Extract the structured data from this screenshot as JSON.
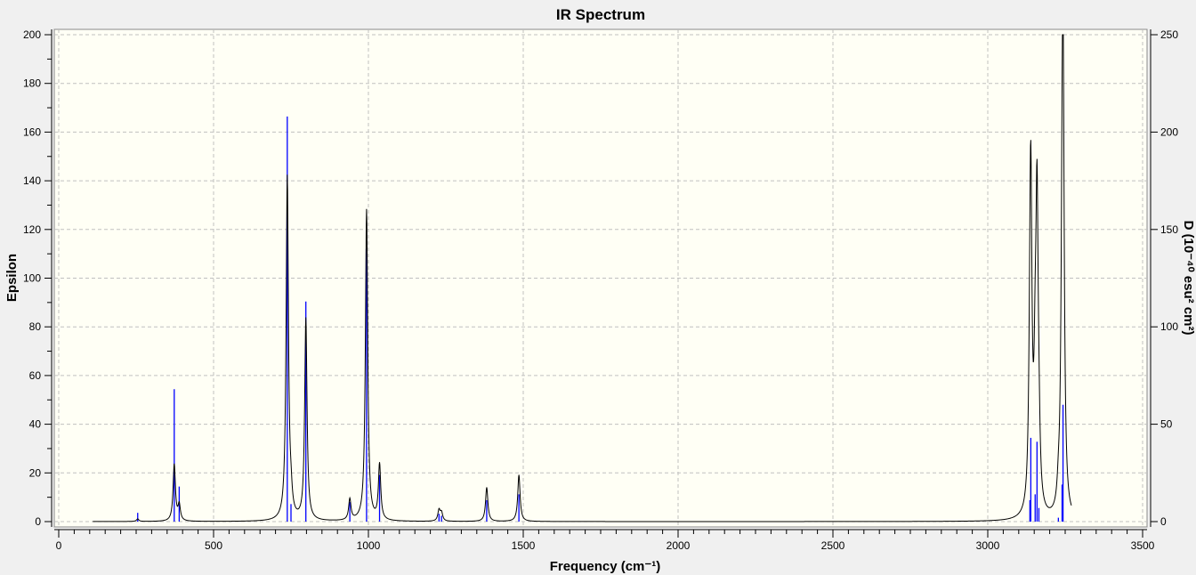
{
  "chart_data": {
    "type": "line",
    "title": "IR Spectrum",
    "xlabel": "Frequency (cm⁻¹)",
    "ylabel": "Epsilon",
    "y2label": "D (10⁻⁴⁰ esu² cm²)",
    "xlim": [
      0,
      3500
    ],
    "ylim": [
      0,
      200
    ],
    "y2lim": [
      0,
      250
    ],
    "x_ticks": [
      "0",
      "500",
      "1000",
      "1500",
      "2000",
      "2500",
      "3000",
      "3500"
    ],
    "y_ticks": [
      "0",
      "20",
      "40",
      "60",
      "80",
      "100",
      "120",
      "140",
      "160",
      "180",
      "200"
    ],
    "y2_ticks": [
      "0",
      "50",
      "100",
      "150",
      "200",
      "250"
    ],
    "grid": true,
    "legend": "none",
    "spectrum_range": [
      110,
      3270
    ],
    "stick_series": {
      "axis": "right",
      "color": "#0000ff",
      "frequencies": [
        255,
        373,
        389,
        738,
        750,
        798,
        940,
        994,
        1036,
        1228,
        1236,
        1382,
        1486,
        3136,
        3139,
        3153,
        3159,
        3165,
        3228,
        3240,
        3243
      ],
      "intensities": [
        4.5,
        68,
        18,
        208,
        9,
        113,
        10,
        140,
        24,
        4,
        3,
        11,
        14,
        11,
        43,
        14,
        41,
        7,
        2,
        19,
        60
      ]
    },
    "curve_series": {
      "axis": "left",
      "color": "#000000"
    },
    "colors": {
      "plot_background": "#fffff5",
      "page_background": "#f0f0f0",
      "grid": "#c0c0c0"
    }
  }
}
